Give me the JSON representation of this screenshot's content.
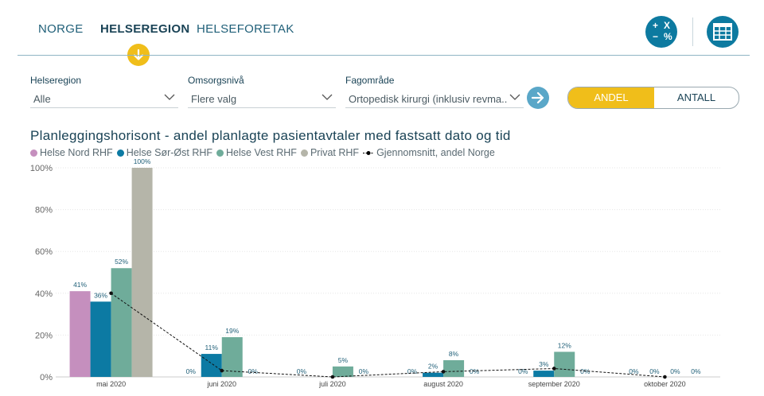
{
  "tabs": [
    {
      "label": "NORGE",
      "active": false
    },
    {
      "label": "HELSEREGION",
      "active": true
    },
    {
      "label": "HELSEFORETAK",
      "active": false
    }
  ],
  "icons": {
    "calc": "calculator-icon",
    "calc_symbols": {
      "plus": "+",
      "times": "X",
      "minus": "−",
      "percent": "%"
    },
    "table": "table-icon",
    "down": "arrow-down-icon",
    "go": "arrow-right-icon"
  },
  "filters": {
    "region": {
      "label": "Helseregion",
      "value": "Alle"
    },
    "level": {
      "label": "Omsorgsnivå",
      "value": "Flere valg"
    },
    "field": {
      "label": "Fagområde",
      "value": "Ortopedisk kirurgi (inklusiv revma..."
    }
  },
  "toggle": {
    "on": "ANDEL",
    "off": "ANTALL"
  },
  "colors": {
    "nord": "#c58fbe",
    "sorost": "#0c7aa3",
    "vest": "#6fac9a",
    "privat": "#b5b5a9",
    "accent": "#f0be1a"
  },
  "chart_data": {
    "type": "bar",
    "title": "Planleggingshorisont - andel planlagte pasientavtaler med fastsatt dato og tid",
    "categories": [
      "mai 2020",
      "juni 2020",
      "juli 2020",
      "august 2020",
      "september 2020",
      "oktober 2020"
    ],
    "series": [
      {
        "name": "Helse Nord RHF",
        "values": [
          41,
          0,
          0,
          0,
          0,
          0
        ],
        "labels": [
          "41%",
          "0%",
          "0%",
          "0%",
          "0%",
          "0%"
        ]
      },
      {
        "name": "Helse Sør-Øst RHF",
        "values": [
          36,
          11,
          0,
          2,
          3,
          0
        ],
        "labels": [
          "36%",
          "11%",
          "",
          "2%",
          "3%",
          "0%"
        ]
      },
      {
        "name": "Helse Vest RHF",
        "values": [
          52,
          19,
          5,
          8,
          12,
          0
        ],
        "labels": [
          "52%",
          "19%",
          "5%",
          "8%",
          "12%",
          "0%"
        ]
      },
      {
        "name": "Privat RHF",
        "values": [
          100,
          0,
          0,
          0,
          0,
          0
        ],
        "labels": [
          "100%",
          "0%",
          "0%",
          "0%",
          "0%",
          "0%"
        ]
      }
    ],
    "line": {
      "name": "Gjennomsnitt, andel Norge",
      "values": [
        40,
        3,
        0,
        2.5,
        4,
        0
      ]
    },
    "yticks": [
      "0%",
      "20%",
      "40%",
      "60%",
      "80%",
      "100%"
    ],
    "ylim": [
      0,
      100
    ],
    "legend": "top-left",
    "grid": true
  }
}
